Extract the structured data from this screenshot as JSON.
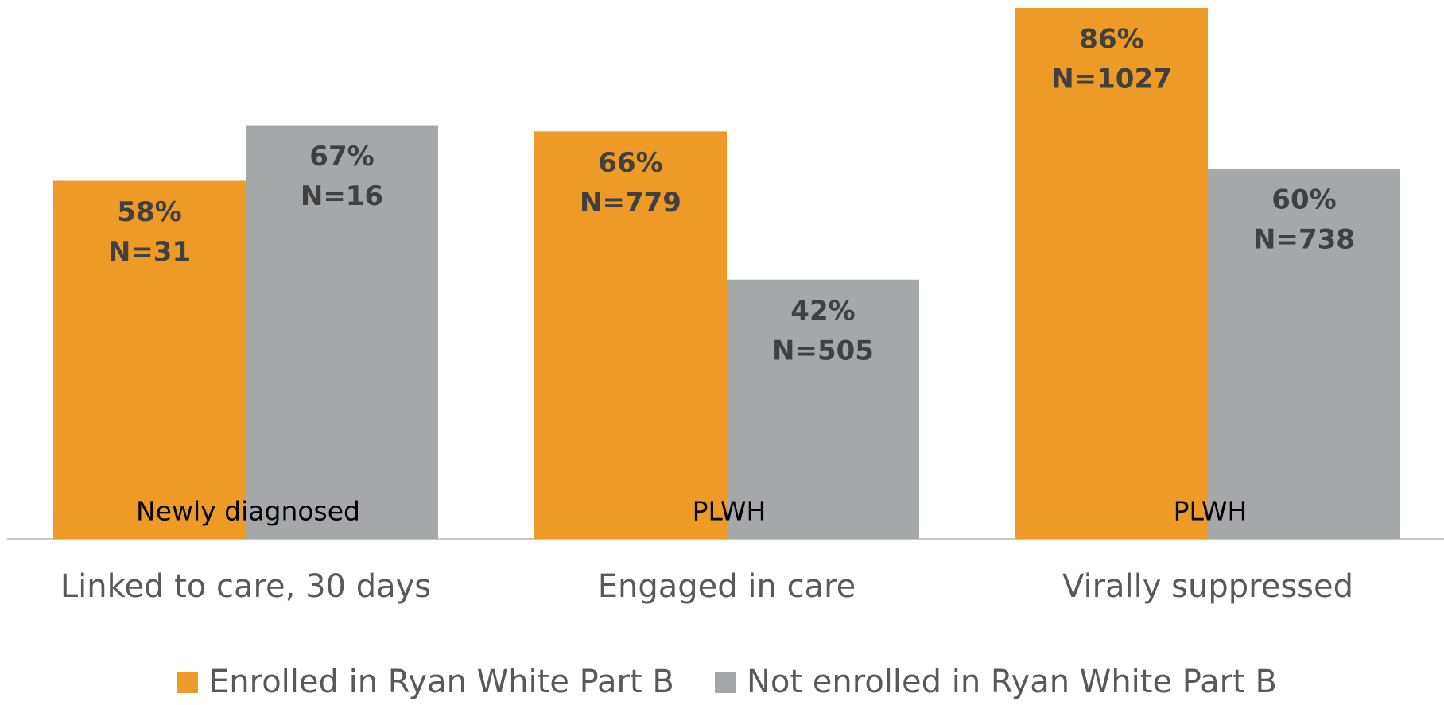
{
  "chart_data": {
    "type": "bar",
    "categories": [
      "Linked to care, 30 days",
      "Engaged in care",
      "Virally suppressed"
    ],
    "annotations": [
      "Newly diagnosed",
      "PLWH",
      "PLWH"
    ],
    "series": [
      {
        "name": "Enrolled in Ryan White Part B",
        "color": "#ee9a26",
        "values": [
          58,
          66,
          86
        ],
        "value_labels": [
          "58%",
          "66%",
          "86%"
        ],
        "n_labels": [
          "N=31",
          "N=779",
          "N=1027"
        ]
      },
      {
        "name": "Not enrolled in Ryan White Part B",
        "color": "#a6a7a9",
        "values": [
          67,
          42,
          60
        ],
        "value_labels": [
          "67%",
          "42%",
          "60%"
        ],
        "n_labels": [
          "N=16",
          "N=505",
          "N=738"
        ]
      }
    ],
    "ylim": [
      0,
      86
    ],
    "legend": "bottom"
  }
}
